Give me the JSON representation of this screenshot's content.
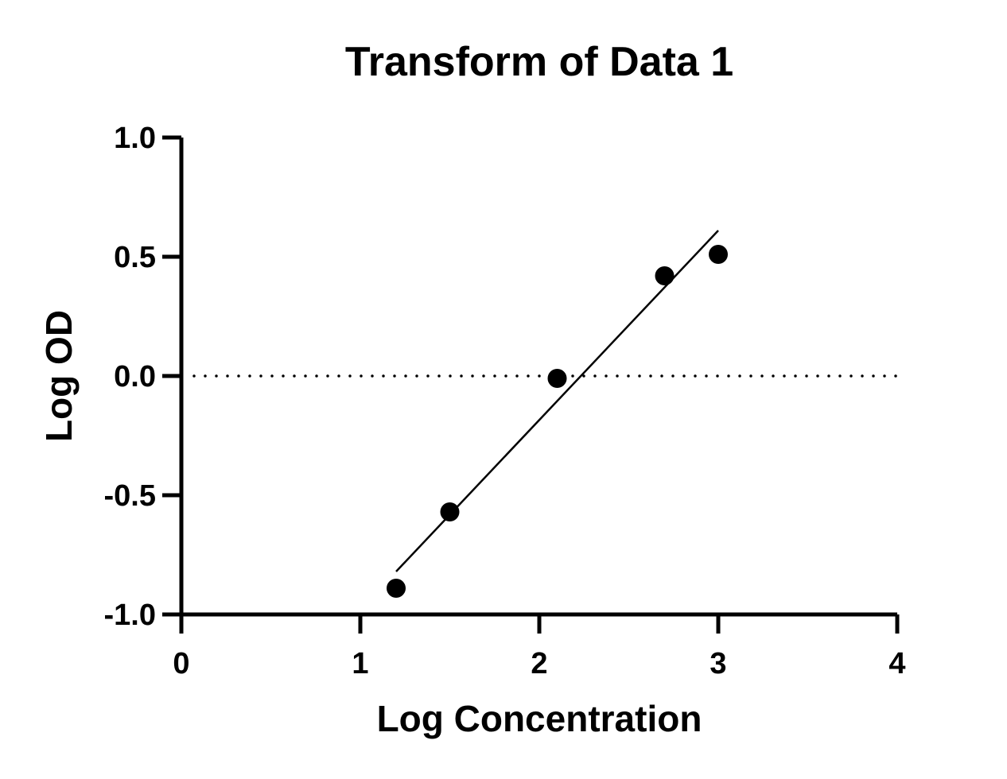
{
  "chart_data": {
    "type": "scatter",
    "title": "Transform of Data 1",
    "xlabel": "Log Concentration",
    "ylabel": "Log OD",
    "xlim": [
      0,
      4
    ],
    "ylim": [
      -1.0,
      1.0
    ],
    "x_ticks": [
      0,
      1,
      2,
      3,
      4
    ],
    "x_tick_labels": [
      "0",
      "1",
      "2",
      "3",
      "4"
    ],
    "y_ticks": [
      -1.0,
      -0.5,
      0.0,
      0.5,
      1.0
    ],
    "y_tick_labels": [
      "-1.0",
      "-0.5",
      "0.0",
      "0.5",
      "1.0"
    ],
    "grid": false,
    "series": [
      {
        "type": "scatter",
        "points": [
          {
            "x": 1.2,
            "y": -0.89
          },
          {
            "x": 1.5,
            "y": -0.57
          },
          {
            "x": 2.1,
            "y": -0.01
          },
          {
            "x": 2.7,
            "y": 0.42
          },
          {
            "x": 3.0,
            "y": 0.51
          }
        ]
      },
      {
        "type": "line",
        "fit": "linear",
        "points": [
          {
            "x": 1.2,
            "y": -0.82
          },
          {
            "x": 3.0,
            "y": 0.61
          }
        ]
      }
    ],
    "reference_lines": [
      {
        "axis": "y",
        "value": 0.0,
        "style": "dotted"
      }
    ],
    "colors": {
      "marker": "#000000",
      "line": "#000000",
      "axis": "#000000"
    }
  }
}
